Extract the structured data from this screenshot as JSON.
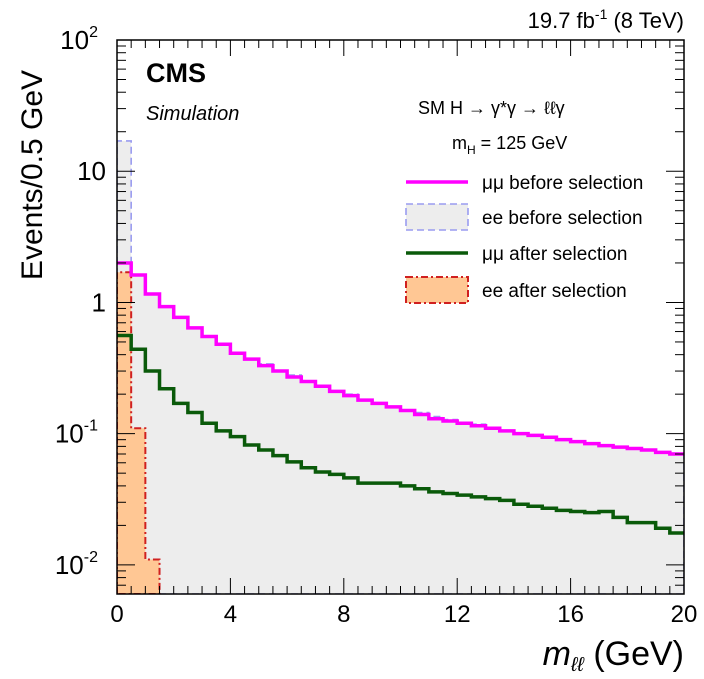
{
  "header": {
    "lumi_text": "19.7 fb",
    "lumi_sup": "-1",
    "energy_text": "(8 TeV)"
  },
  "labels": {
    "experiment": "CMS",
    "subtitle": "Simulation",
    "process_prefix": "SM  H → γ*γ → ℓℓγ",
    "mass_label_m": "m",
    "mass_label_sub": "H",
    "mass_label_value": " = 125 GeV"
  },
  "colors": {
    "mumu_before": "#ff00ff",
    "ee_before_line": "#9a9cf0",
    "ee_before_fill": "#ededed",
    "mumu_after": "#0a5a0a",
    "ee_after_line": "#d02020",
    "ee_after_fill": "#ffc794"
  },
  "chart_data": {
    "type": "line",
    "xlabel": "m_ℓℓ (GeV)",
    "xlabel_main": "m",
    "xlabel_sub": "ℓℓ",
    "xlabel_unit": " (GeV)",
    "ylabel": "Events/0.5 GeV",
    "xlim": [
      0,
      20
    ],
    "ylim": [
      0.006,
      100
    ],
    "yscale": "log",
    "x_ticks": [
      "0",
      "4",
      "8",
      "12",
      "16",
      "20"
    ],
    "y_ticks": [
      {
        "value": 0.01,
        "base": "10",
        "exp": "-2"
      },
      {
        "value": 0.1,
        "base": "10",
        "exp": "-1"
      },
      {
        "value": 1,
        "base": "1",
        "exp": ""
      },
      {
        "value": 10,
        "base": "10",
        "exp": ""
      },
      {
        "value": 100,
        "base": "10",
        "exp": "2"
      }
    ],
    "legend_position": "top-right",
    "bin_edges": [
      0,
      0.5,
      1,
      1.5,
      2,
      2.5,
      3,
      3.5,
      4,
      4.5,
      5,
      5.5,
      6,
      6.5,
      7,
      7.5,
      8,
      8.5,
      9,
      9.5,
      10,
      10.5,
      11,
      11.5,
      12,
      12.5,
      13,
      13.5,
      14,
      14.5,
      15,
      15.5,
      16,
      16.5,
      17,
      17.5,
      18,
      18.5,
      19,
      19.5,
      20
    ],
    "series": [
      {
        "name": "μμ before selection",
        "style": "line",
        "values": [
          2.0,
          1.62,
          1.16,
          0.93,
          0.77,
          0.64,
          0.55,
          0.48,
          0.41,
          0.37,
          0.33,
          0.3,
          0.27,
          0.25,
          0.23,
          0.21,
          0.195,
          0.18,
          0.17,
          0.16,
          0.15,
          0.14,
          0.13,
          0.125,
          0.12,
          0.115,
          0.11,
          0.105,
          0.1,
          0.097,
          0.094,
          0.09,
          0.087,
          0.084,
          0.081,
          0.079,
          0.077,
          0.075,
          0.072,
          0.07
        ]
      },
      {
        "name": "ee before selection",
        "style": "fill-dashed",
        "values": [
          17.0,
          1.62,
          1.16,
          0.93,
          0.77,
          0.64,
          0.55,
          0.48,
          0.41,
          0.37,
          0.34,
          0.3,
          0.28,
          0.25,
          0.23,
          0.21,
          0.2,
          0.18,
          0.17,
          0.16,
          0.15,
          0.145,
          0.135,
          0.128,
          0.12,
          0.118,
          0.11,
          0.106,
          0.1,
          0.098,
          0.095,
          0.09,
          0.088,
          0.085,
          0.082,
          0.08,
          0.078,
          0.076,
          0.072,
          0.071
        ]
      },
      {
        "name": "μμ after selection",
        "style": "line",
        "values": [
          0.56,
          0.44,
          0.3,
          0.22,
          0.17,
          0.145,
          0.12,
          0.105,
          0.095,
          0.082,
          0.075,
          0.068,
          0.061,
          0.055,
          0.051,
          0.049,
          0.046,
          0.042,
          0.042,
          0.042,
          0.04,
          0.038,
          0.036,
          0.035,
          0.034,
          0.033,
          0.032,
          0.031,
          0.029,
          0.028,
          0.027,
          0.026,
          0.0255,
          0.025,
          0.0255,
          0.023,
          0.021,
          0.021,
          0.019,
          0.0175
        ]
      },
      {
        "name": "ee after selection",
        "style": "fill-dashdot",
        "values": [
          1.7,
          0.11,
          0.011,
          null,
          null,
          null,
          null,
          null,
          null,
          null,
          null,
          null,
          null,
          null,
          null,
          null,
          null,
          null,
          null,
          null,
          null,
          null,
          null,
          null,
          null,
          null,
          null,
          null,
          null,
          null,
          null,
          null,
          null,
          null,
          null,
          null,
          null,
          null,
          null,
          null
        ]
      }
    ]
  }
}
